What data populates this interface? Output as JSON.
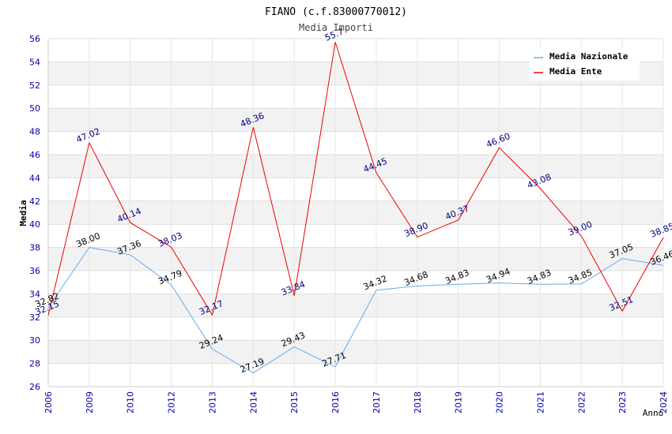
{
  "chart_data": {
    "type": "line",
    "title": "FIANO (c.f.83000770012)",
    "subtitle": "Media Importi",
    "xlabel": "Anno",
    "ylabel": "Media",
    "ylim": [
      26,
      56
    ],
    "ytick_step": 2,
    "grid": true,
    "legend_position": "top-right",
    "categories": [
      "2006",
      "2009",
      "2010",
      "2012",
      "2013",
      "2014",
      "2015",
      "2016",
      "2017",
      "2018",
      "2019",
      "2020",
      "2021",
      "2022",
      "2023",
      "2024"
    ],
    "series": [
      {
        "name": "Media Nazionale",
        "color": "#66aaee",
        "label_color": "#000000",
        "values": [
          32.82,
          38.0,
          37.36,
          34.79,
          29.24,
          27.19,
          29.43,
          27.71,
          34.32,
          34.68,
          34.83,
          34.94,
          34.83,
          34.85,
          37.05,
          36.46
        ],
        "labels": [
          "32.82",
          "38.00",
          "37.36",
          "34.79",
          "29.24",
          "27.19",
          "29.43",
          "27.71",
          "34.32",
          "34.68",
          "34.83",
          "34.94",
          "34.83",
          "34.85",
          "37.05",
          "36.46"
        ]
      },
      {
        "name": "Media Ente",
        "color": "#ee0000",
        "label_color": "#000080",
        "values": [
          32.15,
          47.02,
          40.14,
          38.03,
          32.17,
          48.36,
          33.84,
          55.7,
          44.45,
          38.9,
          40.37,
          46.6,
          43.08,
          39.0,
          32.51,
          38.85
        ],
        "labels": [
          "32.15",
          "47.02",
          "40.14",
          "38.03",
          "32.17",
          "48.36",
          "33.84",
          "55.7",
          "44.45",
          "38.90",
          "40.37",
          "46.60",
          "43.08",
          "39.00",
          "32.51",
          "38.85"
        ]
      }
    ]
  }
}
